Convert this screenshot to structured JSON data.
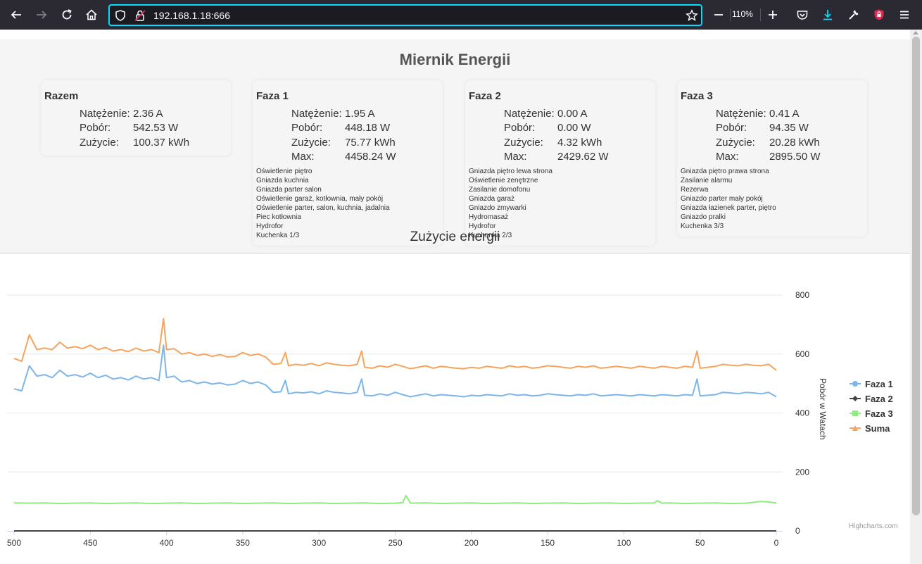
{
  "browser": {
    "url": "192.168.1.18:666",
    "zoom": "110%"
  },
  "page": {
    "title": "Miernik Energii",
    "cards": [
      {
        "title": "Razem",
        "stats": [
          {
            "label": "Natężenie:",
            "value": "2.36 A"
          },
          {
            "label": "Pobór:",
            "value": "542.53 W"
          },
          {
            "label": "Zużycie:",
            "value": "100.37 kWh"
          }
        ],
        "circuits": []
      },
      {
        "title": "Faza 1",
        "stats": [
          {
            "label": "Natężenie:",
            "value": "1.95 A"
          },
          {
            "label": "Pobór:",
            "value": "448.18 W"
          },
          {
            "label": "Zużycie:",
            "value": "75.77 kWh"
          },
          {
            "label": "Max:",
            "value": "4458.24 W"
          }
        ],
        "circuits": [
          "Oświetlenie piętro",
          "Gniazda kuchnia",
          "Gniazda parter salon",
          "Oświetlenie garaż, kotłownia, mały pokój",
          "Oświetlenie parter, salon, kuchnia, jadalnia",
          "Piec kotłownia",
          "Hydrofor",
          "Kuchenka 1/3"
        ]
      },
      {
        "title": "Faza 2",
        "stats": [
          {
            "label": "Natężenie:",
            "value": "0.00 A"
          },
          {
            "label": "Pobór:",
            "value": "0.00 W"
          },
          {
            "label": "Zużycie:",
            "value": "4.32 kWh"
          },
          {
            "label": "Max:",
            "value": "2429.62 W"
          }
        ],
        "circuits": [
          "Gniazda piętro lewa strona",
          "Oświetlenie zenętrzne",
          "Zasilanie domofonu",
          "Gniazda garaż",
          "Gniazdo zmywarki",
          "Hydromasaż",
          "Hydrofor",
          "Kuchenka 2/3"
        ]
      },
      {
        "title": "Faza 3",
        "stats": [
          {
            "label": "Natężenie:",
            "value": "0.41 A"
          },
          {
            "label": "Pobór:",
            "value": "94.35 W"
          },
          {
            "label": "Zużycie:",
            "value": "20.28 kWh"
          },
          {
            "label": "Max:",
            "value": "2895.50 W"
          }
        ],
        "circuits": [
          "Gniazda piętro prawa strona",
          "Zasilanie alarmu",
          "Rezerwa",
          "Gniazdo parter mały pokój",
          "Gniazda łazienek parter, piętro",
          "Gniazdo pralki",
          "Kuchenka 3/3"
        ]
      }
    ],
    "credits": "Highcharts.com"
  },
  "chart_data": {
    "type": "line",
    "title": "Zużycie energii",
    "xlabel": "",
    "ylabel": "Pobór w Watach",
    "xlim": [
      500,
      0
    ],
    "ylim": [
      0,
      800
    ],
    "x_ticks": [
      500,
      450,
      400,
      350,
      300,
      250,
      200,
      150,
      100,
      50,
      0
    ],
    "y_ticks": [
      0,
      200,
      400,
      600,
      800
    ],
    "grid": true,
    "legend_position": "right",
    "x_reversed": true,
    "series": [
      {
        "name": "Faza 1",
        "color": "#7cb5ec",
        "x": [
          500,
          495,
          490,
          485,
          480,
          475,
          470,
          465,
          460,
          455,
          450,
          445,
          440,
          435,
          430,
          425,
          420,
          415,
          410,
          405,
          402,
          400,
          395,
          390,
          385,
          380,
          375,
          370,
          365,
          360,
          355,
          350,
          345,
          340,
          335,
          330,
          325,
          322,
          320,
          315,
          310,
          305,
          300,
          295,
          290,
          285,
          280,
          275,
          272,
          270,
          265,
          260,
          255,
          250,
          245,
          240,
          235,
          230,
          225,
          220,
          215,
          210,
          205,
          200,
          195,
          190,
          185,
          180,
          175,
          170,
          165,
          160,
          155,
          150,
          145,
          140,
          135,
          130,
          125,
          120,
          115,
          110,
          105,
          100,
          95,
          90,
          85,
          80,
          75,
          70,
          65,
          60,
          55,
          52,
          50,
          45,
          40,
          35,
          30,
          25,
          20,
          15,
          10,
          5,
          0
        ],
        "values": [
          482,
          475,
          560,
          525,
          530,
          520,
          545,
          525,
          530,
          522,
          535,
          520,
          528,
          515,
          520,
          512,
          525,
          515,
          520,
          510,
          630,
          520,
          525,
          505,
          510,
          500,
          505,
          498,
          502,
          495,
          498,
          510,
          500,
          505,
          495,
          470,
          472,
          510,
          465,
          470,
          468,
          472,
          465,
          475,
          470,
          468,
          465,
          470,
          515,
          460,
          458,
          465,
          460,
          470,
          462,
          455,
          460,
          465,
          458,
          462,
          460,
          458,
          455,
          460,
          458,
          462,
          460,
          458,
          465,
          460,
          462,
          458,
          460,
          465,
          462,
          460,
          458,
          462,
          460,
          465,
          458,
          460,
          462,
          460,
          458,
          462,
          460,
          458,
          462,
          460,
          458,
          462,
          460,
          515,
          458,
          460,
          462,
          470,
          468,
          465,
          470,
          468,
          465,
          470,
          455
        ]
      },
      {
        "name": "Faza 2",
        "color": "#434348",
        "x": [
          500,
          0
        ],
        "values": [
          0,
          0
        ]
      },
      {
        "name": "Faza 3",
        "color": "#90ed7d",
        "x": [
          500,
          490,
          480,
          470,
          460,
          450,
          440,
          430,
          420,
          410,
          400,
          390,
          380,
          370,
          360,
          350,
          340,
          330,
          320,
          310,
          300,
          290,
          280,
          270,
          260,
          250,
          245,
          243,
          240,
          230,
          220,
          210,
          200,
          190,
          180,
          170,
          160,
          150,
          140,
          130,
          120,
          110,
          100,
          90,
          80,
          78,
          75,
          70,
          60,
          50,
          40,
          30,
          20,
          10,
          5,
          0
        ],
        "values": [
          95,
          94,
          95,
          93,
          94,
          95,
          93,
          94,
          95,
          93,
          94,
          95,
          93,
          94,
          95,
          93,
          94,
          95,
          93,
          94,
          95,
          93,
          94,
          95,
          93,
          94,
          96,
          120,
          94,
          95,
          93,
          94,
          95,
          93,
          94,
          95,
          93,
          94,
          95,
          93,
          94,
          95,
          93,
          94,
          95,
          103,
          94,
          95,
          93,
          94,
          95,
          93,
          94,
          100,
          98,
          95
        ]
      },
      {
        "name": "Suma",
        "color": "#f7a35c",
        "x": [
          500,
          495,
          490,
          485,
          480,
          475,
          470,
          465,
          460,
          455,
          450,
          445,
          440,
          435,
          430,
          425,
          420,
          415,
          410,
          405,
          402,
          400,
          395,
          390,
          385,
          380,
          375,
          370,
          365,
          360,
          355,
          350,
          345,
          340,
          335,
          330,
          325,
          322,
          320,
          315,
          310,
          305,
          300,
          295,
          290,
          285,
          280,
          275,
          272,
          270,
          265,
          260,
          255,
          250,
          245,
          240,
          235,
          230,
          225,
          220,
          215,
          210,
          205,
          200,
          195,
          190,
          185,
          180,
          175,
          170,
          165,
          160,
          155,
          150,
          145,
          140,
          135,
          130,
          125,
          120,
          115,
          110,
          105,
          100,
          95,
          90,
          85,
          80,
          75,
          70,
          65,
          60,
          55,
          52,
          50,
          45,
          40,
          35,
          30,
          25,
          20,
          15,
          10,
          5,
          0
        ],
        "values": [
          585,
          575,
          665,
          615,
          620,
          615,
          640,
          620,
          625,
          618,
          630,
          615,
          622,
          610,
          615,
          608,
          620,
          610,
          615,
          605,
          720,
          615,
          618,
          600,
          605,
          595,
          600,
          592,
          598,
          590,
          592,
          605,
          595,
          600,
          590,
          565,
          568,
          605,
          560,
          565,
          562,
          568,
          560,
          570,
          565,
          562,
          560,
          565,
          610,
          555,
          552,
          560,
          555,
          565,
          558,
          550,
          555,
          560,
          552,
          558,
          555,
          552,
          550,
          555,
          552,
          558,
          555,
          552,
          560,
          555,
          558,
          552,
          555,
          560,
          558,
          555,
          552,
          558,
          555,
          560,
          552,
          555,
          558,
          555,
          552,
          558,
          555,
          552,
          558,
          555,
          552,
          558,
          555,
          610,
          552,
          555,
          558,
          565,
          562,
          560,
          565,
          562,
          560,
          565,
          545
        ]
      }
    ]
  }
}
